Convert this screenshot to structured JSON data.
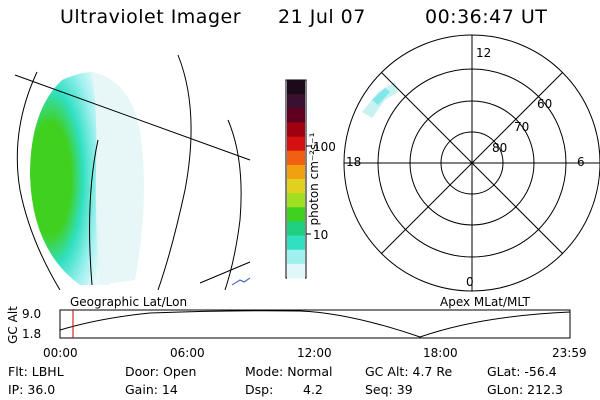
{
  "header": {
    "instrument": "Ultraviolet Imager",
    "date": "21 Jul 07",
    "time": "00:36:47 UT"
  },
  "colorbar": {
    "unit_label": "photon cm⁻²s⁻¹",
    "ticks": [
      "100",
      "10"
    ],
    "colors": [
      "#1a0a1a",
      "#3a1030",
      "#600020",
      "#a00010",
      "#d41010",
      "#f06010",
      "#f0a010",
      "#e0d020",
      "#a0e020",
      "#40d020",
      "#20d080",
      "#30e0c0",
      "#a0f0f0",
      "#e0f8f8"
    ]
  },
  "left_panel": {
    "caption": "Geographic Lat/Lon",
    "emission_colors": [
      "#40d020",
      "#30e0c0",
      "#a0f0f0",
      "#e0f8f8"
    ]
  },
  "polar_panel": {
    "caption": "Apex MLat/MLT",
    "mlt_labels": {
      "top": "12",
      "left": "18",
      "right": "6",
      "bottom": "0"
    },
    "lat_labels": [
      "60",
      "70",
      "80"
    ]
  },
  "altitude_plot": {
    "ylabel": "GC Alt",
    "yticks": [
      "9.0",
      "1.8"
    ],
    "xticks": [
      "00:00",
      "06:00",
      "12:00",
      "18:00",
      "23:59"
    ],
    "marker_color": "#c00000"
  },
  "footer": {
    "flt": "Flt: LBHL",
    "ip": "IP: 36.0",
    "door": "Door: Open",
    "gain": "Gain: 14",
    "mode": "Mode: Normal",
    "dsp_label": "Dsp:",
    "dsp_value": "4.2",
    "gcalt": "GC Alt: 4.7 Re",
    "seq": "Seq: 39",
    "glat": "GLat: -56.4",
    "glon": "GLon: 212.3"
  }
}
